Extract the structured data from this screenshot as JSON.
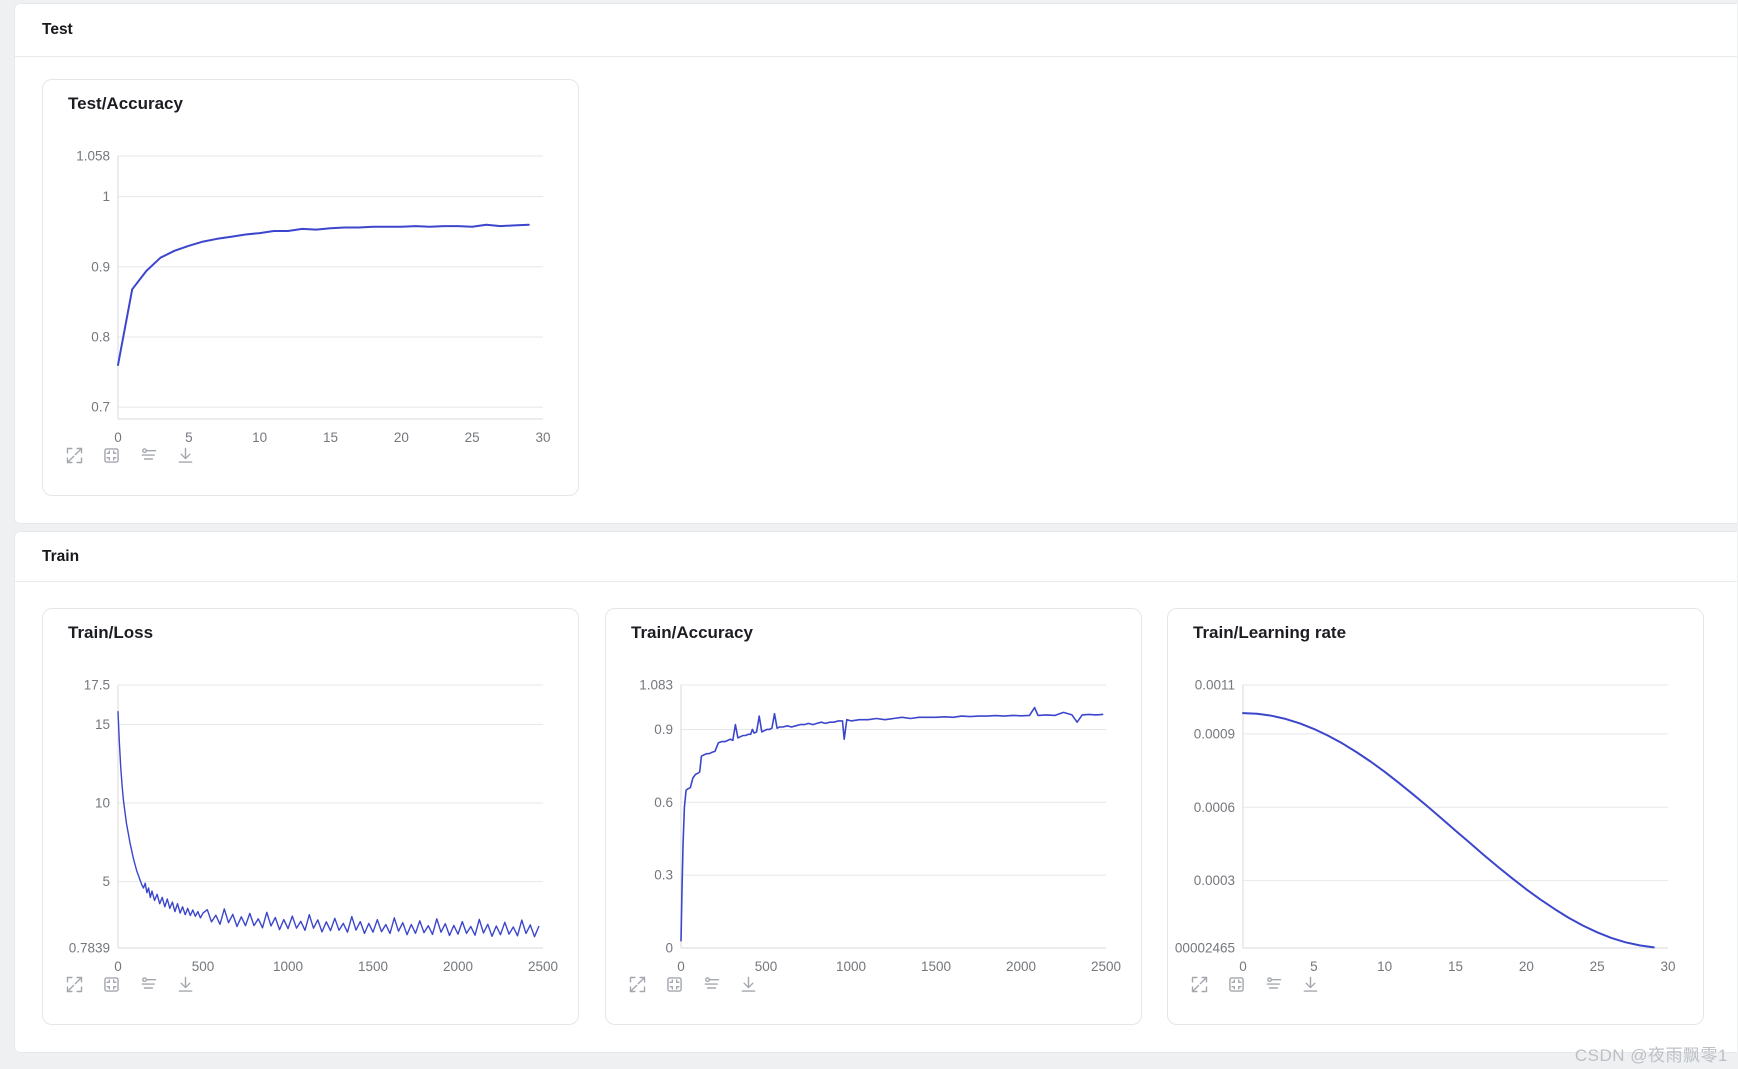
{
  "page": {
    "watermark": "CSDN @夜雨飘零1",
    "background": "#eef0f1",
    "accent_color": "#3b46cc"
  },
  "sections": [
    {
      "id": "test",
      "title": "Test"
    },
    {
      "id": "train",
      "title": "Train"
    }
  ],
  "toolbar": {
    "icons": [
      "fullscreen-icon",
      "fit-view-icon",
      "smoothing-icon",
      "download-icon"
    ]
  },
  "chart_data": [
    {
      "id": "test-accuracy",
      "section": "test",
      "title": "Test/Accuracy",
      "type": "line",
      "color": "#3b46cc",
      "line_width": 2,
      "grid": true,
      "legend": null,
      "xlim": [
        0,
        30
      ],
      "ylim": [
        0.683,
        1.058
      ],
      "xticks": [
        {
          "v": 0,
          "label": "0"
        },
        {
          "v": 5,
          "label": "5"
        },
        {
          "v": 10,
          "label": "10"
        },
        {
          "v": 15,
          "label": "15"
        },
        {
          "v": 20,
          "label": "20"
        },
        {
          "v": 25,
          "label": "25"
        },
        {
          "v": 30,
          "label": "30"
        }
      ],
      "yticks": [
        {
          "v": 1.058,
          "label": "1.058"
        },
        {
          "v": 1,
          "label": "1"
        },
        {
          "v": 0.9,
          "label": "0.9"
        },
        {
          "v": 0.8,
          "label": "0.8"
        },
        {
          "v": 0.7,
          "label": "0.7"
        }
      ],
      "x": [
        0,
        1,
        2,
        3,
        4,
        5,
        6,
        7,
        8,
        9,
        10,
        11,
        12,
        13,
        14,
        15,
        16,
        17,
        18,
        19,
        20,
        21,
        22,
        23,
        24,
        25,
        26,
        27,
        28,
        29
      ],
      "y": [
        0.76,
        0.868,
        0.894,
        0.913,
        0.923,
        0.93,
        0.936,
        0.94,
        0.943,
        0.946,
        0.948,
        0.951,
        0.951,
        0.954,
        0.953,
        0.955,
        0.956,
        0.956,
        0.957,
        0.957,
        0.957,
        0.958,
        0.957,
        0.958,
        0.958,
        0.957,
        0.96,
        0.958,
        0.959,
        0.96
      ]
    },
    {
      "id": "train-loss",
      "section": "train",
      "title": "Train/Loss",
      "type": "line",
      "color": "#3b46cc",
      "line_width": 1.4,
      "grid": true,
      "legend": null,
      "xlim": [
        0,
        2500
      ],
      "ylim": [
        0.7839,
        17.5
      ],
      "xticks": [
        {
          "v": 0,
          "label": "0"
        },
        {
          "v": 500,
          "label": "500"
        },
        {
          "v": 1000,
          "label": "1000"
        },
        {
          "v": 1500,
          "label": "1500"
        },
        {
          "v": 2000,
          "label": "2000"
        },
        {
          "v": 2500,
          "label": "2500"
        }
      ],
      "yticks": [
        {
          "v": 17.5,
          "label": "17.5"
        },
        {
          "v": 15,
          "label": "15"
        },
        {
          "v": 10,
          "label": "10"
        },
        {
          "v": 5,
          "label": "5"
        },
        {
          "v": 0.7839,
          "label": "0.7839"
        }
      ],
      "x": [
        0,
        8,
        16,
        24,
        32,
        40,
        50,
        60,
        70,
        80,
        90,
        100,
        110,
        120,
        130,
        140,
        150,
        160,
        170,
        180,
        190,
        200,
        215,
        230,
        245,
        260,
        275,
        290,
        305,
        320,
        335,
        350,
        365,
        380,
        395,
        410,
        425,
        440,
        455,
        470,
        485,
        500,
        525,
        550,
        575,
        600,
        625,
        650,
        675,
        700,
        725,
        750,
        775,
        800,
        825,
        850,
        875,
        900,
        925,
        950,
        975,
        1000,
        1025,
        1050,
        1075,
        1100,
        1125,
        1150,
        1175,
        1200,
        1225,
        1250,
        1275,
        1300,
        1325,
        1350,
        1375,
        1400,
        1425,
        1450,
        1475,
        1500,
        1525,
        1550,
        1575,
        1600,
        1625,
        1650,
        1675,
        1700,
        1725,
        1750,
        1775,
        1800,
        1825,
        1850,
        1875,
        1900,
        1925,
        1950,
        1975,
        2000,
        2025,
        2050,
        2075,
        2100,
        2125,
        2150,
        2175,
        2200,
        2225,
        2250,
        2275,
        2300,
        2325,
        2350,
        2375,
        2400,
        2425,
        2450,
        2475
      ],
      "y": [
        15.8,
        13.8,
        12.3,
        11.1,
        10.2,
        9.5,
        8.7,
        8.1,
        7.5,
        7.0,
        6.5,
        6.1,
        5.7,
        5.4,
        5.1,
        4.8,
        4.6,
        4.9,
        4.3,
        4.6,
        4.0,
        4.4,
        3.8,
        4.2,
        3.6,
        4.0,
        3.4,
        3.9,
        3.3,
        3.7,
        3.1,
        3.6,
        3.0,
        3.4,
        2.9,
        3.3,
        2.85,
        3.2,
        2.8,
        3.1,
        2.7,
        3.0,
        3.22,
        2.44,
        2.87,
        2.29,
        3.27,
        2.39,
        2.92,
        2.15,
        2.77,
        2.2,
        2.98,
        2.21,
        2.64,
        2.07,
        3.05,
        2.19,
        2.72,
        1.95,
        2.59,
        2.02,
        2.81,
        2.04,
        2.48,
        1.91,
        2.9,
        2.04,
        2.57,
        1.81,
        2.45,
        1.89,
        2.67,
        1.91,
        2.35,
        1.79,
        2.78,
        1.92,
        2.46,
        1.71,
        2.35,
        1.79,
        2.58,
        1.82,
        2.27,
        1.71,
        2.7,
        1.85,
        2.39,
        1.63,
        2.28,
        1.72,
        2.51,
        1.76,
        2.2,
        1.65,
        2.64,
        1.79,
        2.33,
        1.58,
        2.22,
        1.67,
        2.46,
        1.71,
        2.15,
        1.6,
        2.6,
        1.74,
        2.29,
        1.53,
        2.18,
        1.63,
        2.42,
        1.67,
        2.12,
        1.56,
        2.56,
        1.71,
        2.25,
        1.5,
        2.15
      ]
    },
    {
      "id": "train-accuracy",
      "section": "train",
      "title": "Train/Accuracy",
      "type": "line",
      "color": "#3b46cc",
      "line_width": 1.6,
      "grid": true,
      "legend": null,
      "xlim": [
        0,
        2500
      ],
      "ylim": [
        0,
        1.083
      ],
      "xticks": [
        {
          "v": 0,
          "label": "0"
        },
        {
          "v": 500,
          "label": "500"
        },
        {
          "v": 1000,
          "label": "1000"
        },
        {
          "v": 1500,
          "label": "1500"
        },
        {
          "v": 2000,
          "label": "2000"
        },
        {
          "v": 2500,
          "label": "2500"
        }
      ],
      "yticks": [
        {
          "v": 1.083,
          "label": "1.083"
        },
        {
          "v": 0.9,
          "label": "0.9"
        },
        {
          "v": 0.6,
          "label": "0.6"
        },
        {
          "v": 0.3,
          "label": "0.3"
        },
        {
          "v": 0,
          "label": "0"
        }
      ],
      "x": [
        0,
        5,
        12,
        20,
        30,
        40,
        55,
        70,
        85,
        100,
        110,
        120,
        135,
        150,
        165,
        180,
        200,
        220,
        240,
        260,
        275,
        290,
        305,
        320,
        335,
        350,
        365,
        380,
        395,
        410,
        420,
        430,
        445,
        460,
        475,
        490,
        505,
        520,
        535,
        550,
        565,
        580,
        600,
        625,
        650,
        675,
        700,
        725,
        750,
        775,
        800,
        825,
        850,
        875,
        900,
        925,
        950,
        960,
        975,
        1000,
        1050,
        1100,
        1150,
        1200,
        1250,
        1300,
        1350,
        1400,
        1450,
        1500,
        1550,
        1600,
        1650,
        1700,
        1750,
        1800,
        1850,
        1900,
        1950,
        2000,
        2050,
        2080,
        2100,
        2150,
        2200,
        2250,
        2300,
        2330,
        2360,
        2400,
        2440,
        2480
      ],
      "y": [
        0.03,
        0.2,
        0.42,
        0.58,
        0.65,
        0.655,
        0.66,
        0.7,
        0.715,
        0.72,
        0.725,
        0.79,
        0.795,
        0.8,
        0.8,
        0.805,
        0.81,
        0.845,
        0.85,
        0.85,
        0.855,
        0.86,
        0.855,
        0.92,
        0.865,
        0.87,
        0.875,
        0.875,
        0.88,
        0.88,
        0.9,
        0.885,
        0.89,
        0.955,
        0.89,
        0.895,
        0.9,
        0.9,
        0.905,
        0.965,
        0.905,
        0.91,
        0.91,
        0.915,
        0.91,
        0.915,
        0.92,
        0.92,
        0.925,
        0.92,
        0.925,
        0.93,
        0.925,
        0.93,
        0.93,
        0.935,
        0.935,
        0.86,
        0.94,
        0.935,
        0.94,
        0.94,
        0.945,
        0.94,
        0.945,
        0.95,
        0.945,
        0.95,
        0.95,
        0.95,
        0.952,
        0.95,
        0.955,
        0.953,
        0.955,
        0.955,
        0.957,
        0.955,
        0.958,
        0.956,
        0.958,
        0.99,
        0.958,
        0.96,
        0.958,
        0.97,
        0.96,
        0.93,
        0.96,
        0.962,
        0.96,
        0.962
      ]
    },
    {
      "id": "train-learning-rate",
      "section": "train",
      "title": "Train/Learning rate",
      "type": "line",
      "color": "#3b46cc",
      "line_width": 2,
      "grid": true,
      "legend": null,
      "xlim": [
        0,
        30
      ],
      "ylim": [
        2.465e-05,
        0.0011
      ],
      "xticks": [
        {
          "v": 0,
          "label": "0"
        },
        {
          "v": 5,
          "label": "5"
        },
        {
          "v": 10,
          "label": "10"
        },
        {
          "v": 15,
          "label": "15"
        },
        {
          "v": 20,
          "label": "20"
        },
        {
          "v": 25,
          "label": "25"
        },
        {
          "v": 30,
          "label": "30"
        }
      ],
      "yticks": [
        {
          "v": 0.0011,
          "label": "0.0011"
        },
        {
          "v": 0.0009,
          "label": "0.0009"
        },
        {
          "v": 0.0006,
          "label": "0.0006"
        },
        {
          "v": 0.0003,
          "label": "0.0003"
        },
        {
          "v": 2.465e-05,
          "label": "00002465"
        }
      ],
      "x": [
        0,
        1,
        2,
        3,
        4,
        5,
        6,
        7,
        8,
        9,
        10,
        11,
        12,
        13,
        14,
        15,
        16,
        17,
        18,
        19,
        20,
        21,
        22,
        23,
        24,
        25,
        26,
        27,
        28,
        29
      ],
      "y": [
        0.000985,
        0.0009822,
        0.0009745,
        0.0009615,
        0.0009435,
        0.0009207,
        0.0008933,
        0.0008617,
        0.0008262,
        0.0007871,
        0.0007449,
        0.0007001,
        0.0006532,
        0.0006047,
        0.000555,
        0.0005048,
        0.0004546,
        0.000405,
        0.0003564,
        0.0003095,
        0.0002647,
        0.0002225,
        0.0001835,
        0.0001479,
        0.0001163,
        8.89e-05,
        6.61e-05,
        4.81e-05,
        3.51e-05,
        2.72e-05
      ]
    }
  ]
}
